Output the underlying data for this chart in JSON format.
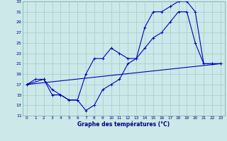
{
  "title": "Graphe des températures (°C)",
  "bg_color": "#cce8e8",
  "grid_color": "#aacfcf",
  "line_color": "#0000bb",
  "xlim": [
    -0.5,
    23.5
  ],
  "ylim": [
    11,
    33
  ],
  "xticks": [
    0,
    1,
    2,
    3,
    4,
    5,
    6,
    7,
    8,
    9,
    10,
    11,
    12,
    13,
    14,
    15,
    16,
    17,
    18,
    19,
    20,
    21,
    22,
    23
  ],
  "yticks": [
    11,
    13,
    15,
    17,
    19,
    21,
    23,
    25,
    27,
    29,
    31,
    33
  ],
  "line1_x": [
    0,
    1,
    2,
    3,
    4,
    5,
    6,
    7,
    8,
    9,
    10,
    11,
    12,
    13,
    14,
    15,
    16,
    17,
    18,
    19,
    20,
    21,
    22,
    23
  ],
  "line1_y": [
    17,
    18,
    18,
    16,
    15,
    14,
    14,
    19,
    22,
    22,
    24,
    23,
    22,
    22,
    28,
    31,
    31,
    32,
    33,
    33,
    31,
    21,
    21,
    21
  ],
  "line2_x": [
    0,
    2,
    3,
    4,
    5,
    6,
    6,
    7,
    8,
    9,
    10,
    11,
    12,
    13,
    14,
    15,
    16,
    17,
    18,
    19,
    20,
    21,
    22,
    23
  ],
  "line2_y": [
    17,
    18,
    15,
    15,
    14,
    14,
    14,
    12,
    13,
    16,
    17,
    18,
    21,
    22,
    24,
    26,
    27,
    29,
    31,
    31,
    25,
    21,
    21,
    21
  ],
  "line3_x": [
    0,
    23
  ],
  "line3_y": [
    17,
    21
  ]
}
